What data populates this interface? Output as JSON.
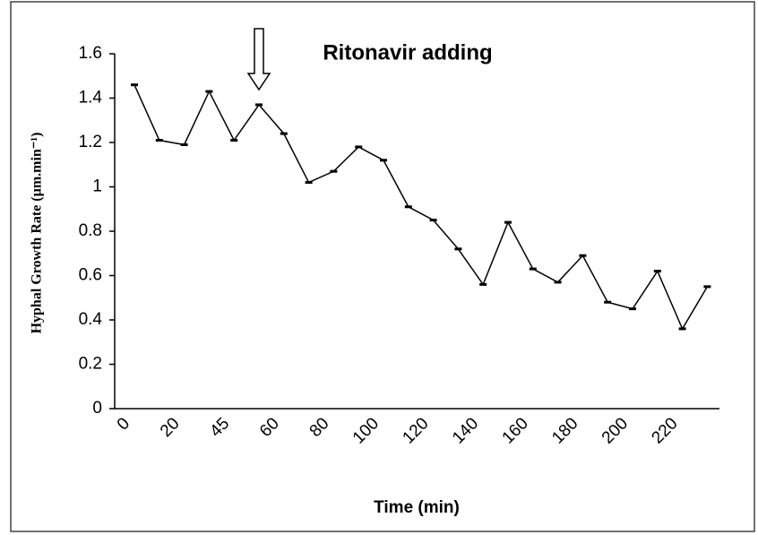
{
  "chart_data": {
    "type": "line",
    "y_label": "Hyphal Growth Rate (µm.min⁻¹)",
    "x_label": "Time (min)",
    "annotation": "Ritonavir adding",
    "categories": [
      "0",
      null,
      "20",
      null,
      "45",
      null,
      "60",
      null,
      "80",
      null,
      "100",
      null,
      "120",
      null,
      "140",
      null,
      "160",
      null,
      "180",
      null,
      "200",
      null,
      "220",
      null
    ],
    "series": [
      {
        "name": "Hyphal Growth Rate",
        "color": "#000000",
        "values": [
          1.46,
          1.21,
          1.19,
          1.43,
          1.21,
          1.37,
          1.24,
          1.02,
          1.07,
          1.18,
          1.12,
          0.91,
          0.85,
          0.72,
          0.56,
          0.84,
          0.63,
          0.57,
          0.69,
          0.48,
          0.45,
          0.62,
          0.36,
          0.55
        ]
      }
    ],
    "annotation_index": 5,
    "ylim": [
      0,
      1.6
    ],
    "yticks": [
      0,
      0.2,
      0.4,
      0.6,
      0.8,
      1,
      1.2,
      1.4,
      1.6
    ],
    "grid": false
  }
}
